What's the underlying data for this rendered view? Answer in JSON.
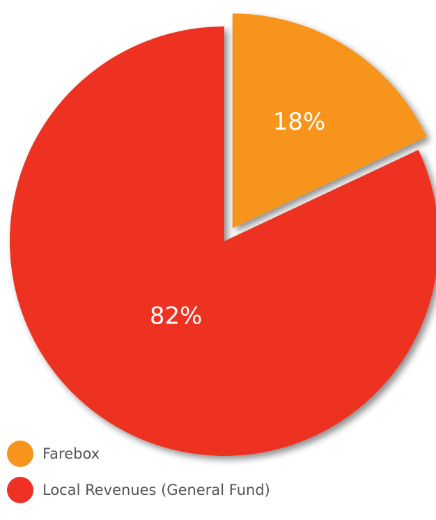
{
  "chart_data": {
    "type": "pie",
    "title": "",
    "categories": [
      "Farebox",
      "Local Revenues (General Fund)"
    ],
    "values": [
      18,
      82
    ],
    "labels": [
      "18%",
      "82%"
    ],
    "colors": [
      "#f7941d",
      "#ee3124"
    ],
    "exploded": [
      "Farebox"
    ],
    "legend_position": "bottom-left",
    "shadow": true
  },
  "legend": {
    "items": [
      {
        "label": "Farebox",
        "color": "#f7941d"
      },
      {
        "label": "Local Revenues (General Fund)",
        "color": "#ee3124"
      }
    ]
  }
}
